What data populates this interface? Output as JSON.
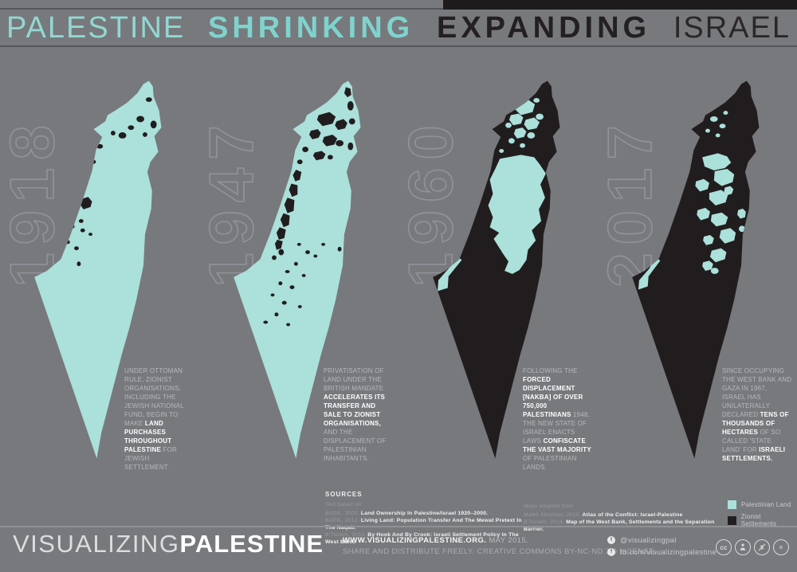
{
  "title": {
    "palestine": "PALESTINE",
    "shrinking": "SHRINKING",
    "expanding": "EXPANDING",
    "israel": "ISRAEL"
  },
  "colors": {
    "background": "#77797d",
    "ink_black": "#211d1e",
    "palestinian_teal": "#ace0da",
    "title_teal": "#8fd6d1",
    "year_outline": "#8f9298",
    "body_text": "#b6b8ba",
    "highlight_text": "#ffffff"
  },
  "panels": [
    {
      "year": "1918",
      "runs": [
        {
          "t": "UNDER OTTOMAN RULE, ZIONIST ORGANISATIONS, INCLUDING THE JEWISH NATIONAL FUND, BEGIN TO MAKE ",
          "b": false
        },
        {
          "t": "LAND PURCHASES THROUGHOUT PALESTINE ",
          "b": true
        },
        {
          "t": "FOR JEWISH SETTLEMENT.",
          "b": false
        }
      ]
    },
    {
      "year": "1947",
      "runs": [
        {
          "t": "PRIVATISATION OF LAND UNDER THE BRITISH MANDATE ",
          "b": false
        },
        {
          "t": "ACCELERATES ITS TRANSFER AND SALE TO ZIONIST ORGANISATIONS, ",
          "b": true
        },
        {
          "t": "AND THE DISPLACEMENT OF PALESTINIAN INHABITANTS.",
          "b": false
        }
      ]
    },
    {
      "year": "1960",
      "runs": [
        {
          "t": "FOLLOWING THE ",
          "b": false
        },
        {
          "t": "FORCED DISPLACEMENT [NAKBA] OF OVER 750,000 PALESTINIANS ",
          "b": true
        },
        {
          "t": "1948, THE NEW STATE OF ISRAEL ENACTS LAWS ",
          "b": false
        },
        {
          "t": "CONFISCATE THE VAST MAJORITY ",
          "b": true
        },
        {
          "t": "OF PALESTINIAN LANDS.",
          "b": false
        }
      ]
    },
    {
      "year": "2017",
      "runs": [
        {
          "t": "SINCE OCCUPYING THE WEST BANK AND GAZA IN 1967, ISRAEL HAS UNILATERALLY DECLARED ",
          "b": false
        },
        {
          "t": "TENS OF THOUSANDS OF HECTARES",
          "b": true
        },
        {
          "t": " OF SO CALLED 'STATE LAND' FOR ",
          "b": false
        },
        {
          "t": "ISRAELI SETTLEMENTS.",
          "b": true
        }
      ]
    }
  ],
  "sources": {
    "heading": "SOURCES",
    "intro": "Text based on",
    "lines": [
      {
        "runs": [
          {
            "t": "BADIL, 2000. ",
            "b": false
          },
          {
            "t": "Land Ownership In Palestine/Israel 1920–2000.",
            "b": true
          }
        ]
      },
      {
        "runs": [
          {
            "t": "BADIL, 2012. ",
            "b": false
          },
          {
            "t": "Living Land: Population Transfer And The Mewat Pretext In The Naqab.",
            "b": true
          }
        ]
      },
      {
        "runs": [
          {
            "t": "B'Tselem, 2010. ",
            "b": false
          },
          {
            "t": "By Hook And By Crook: Israeli Settlement Policy In The West Bank.",
            "b": true
          }
        ]
      }
    ]
  },
  "maps_adapted": {
    "intro": "Maps adapted from",
    "lines": [
      {
        "runs": [
          {
            "t": "Malkit Shoshan, 2010. ",
            "b": false
          },
          {
            "t": "Atlas of the Conflict: Israel-Palestine",
            "b": true
          }
        ]
      },
      {
        "runs": [
          {
            "t": "B'Tselem, 2014. ",
            "b": false
          },
          {
            "t": "Map of the West Bank, Settlements and the Separation Barrier.",
            "b": true
          }
        ]
      }
    ]
  },
  "legend": {
    "items": [
      {
        "label": "Palestinian Land",
        "color": "#ace0da"
      },
      {
        "label": "Zionist Settlements",
        "color": "#231f20"
      }
    ]
  },
  "footer": {
    "wordmark_light": "VISUALIZING",
    "wordmark_bold": "PALESTINE",
    "url": "WWW.VISUALIZINGPALESTINE.ORG.",
    "date": " MAY 2015.",
    "license": "SHARE AND DISTRIBUTE FREELY. CREATIVE COMMONS BY-NC-ND 3.0 LICENSE.",
    "twitter": "@visualizingpal",
    "facebook": "fb.com/visualizingpalestine",
    "cc_label": "cc",
    "nd_label": "="
  }
}
